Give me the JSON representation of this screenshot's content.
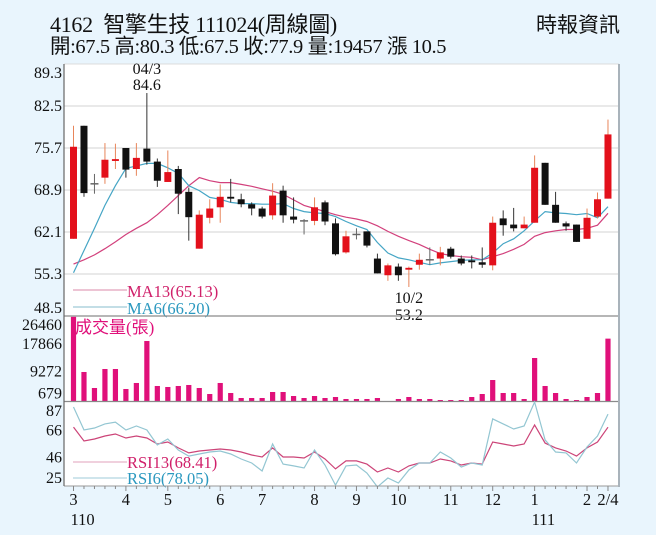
{
  "header": {
    "title": "4162  智擎生技 111024(周線圖)",
    "ohlc_line": "開:67.5 高:80.3 低:67.5 收:77.9 量:19457 漲 10.5",
    "source": "時報資訊"
  },
  "colors": {
    "background": "#e9f5fd",
    "plot_bg": "#ffffff",
    "grid": "#dcdcdc",
    "up": "#e3101b",
    "up_wick": "#e8855a",
    "down": "#111111",
    "down_wick": "#333333",
    "doji": "#666666",
    "volume": "#e0107a",
    "ma13": "#d2407c",
    "ma6": "#45a5c5",
    "rsi13": "#cc4478",
    "rsi6": "#93c6d2",
    "legend_pink_text": "#d0206a",
    "legend_blue_text": "#2a98bf",
    "legend_pink_line": "#e2a0bb",
    "legend_blue_line": "#9fcbd8",
    "axis": "#666666",
    "panel_border": "#8a8a8a",
    "right_border": "#a9b3bb"
  },
  "chart_data": [
    {
      "type": "candlestick",
      "title": "4162 智擎生技 111024(周線圖)",
      "panel": "price",
      "xlabel": "",
      "ylabel": "",
      "ylim": [
        48.5,
        89.3
      ],
      "y_ticks": [
        "89.3",
        "82.5",
        "75.7",
        "68.9",
        "62.1",
        "55.3",
        "48.5"
      ],
      "y_tick_values": [
        89.3,
        82.5,
        75.7,
        68.9,
        62.1,
        55.3,
        48.5
      ],
      "gridlines": [
        82.5,
        75.7,
        68.9,
        62.1,
        55.3
      ],
      "x_ticks": [
        {
          "label": "3",
          "index": 0,
          "year": "110"
        },
        {
          "label": "4",
          "index": 5
        },
        {
          "label": "5",
          "index": 9
        },
        {
          "label": "6",
          "index": 14
        },
        {
          "label": "7",
          "index": 18
        },
        {
          "label": "8",
          "index": 23
        },
        {
          "label": "9",
          "index": 27
        },
        {
          "label": "10",
          "index": 31
        },
        {
          "label": "11",
          "index": 36
        },
        {
          "label": "12",
          "index": 40
        },
        {
          "label": "1",
          "index": 44,
          "year": "111"
        },
        {
          "label": "2",
          "index": 49
        },
        {
          "label": "2/4",
          "index": 51
        }
      ],
      "open": [
        61.0,
        79.3,
        69.9,
        70.9,
        73.6,
        75.7,
        72.3,
        75.6,
        73.5,
        70.2,
        72.3,
        68.6,
        59.4,
        64.4,
        66.1,
        67.8,
        67.4,
        66.6,
        65.9,
        64.8,
        68.8,
        64.6,
        63.9,
        63.9,
        66.9,
        63.5,
        58.8,
        61.7,
        62.2,
        57.8,
        55.1,
        56.5,
        56.0,
        56.8,
        57.6,
        57.8,
        59.4,
        57.8,
        57.5,
        57.2,
        56.7,
        64.3,
        63.3,
        62.7,
        63.6,
        73.3,
        66.5,
        63.5,
        63.3,
        61.0,
        64.6,
        67.5
      ],
      "high": [
        79.3,
        79.3,
        71.5,
        76.5,
        76.4,
        75.7,
        76.5,
        84.6,
        74.0,
        75.3,
        72.8,
        69.3,
        65.6,
        67.4,
        69.8,
        70.7,
        68.3,
        66.9,
        66.2,
        70.0,
        69.6,
        67.7,
        64.2,
        67.7,
        67.2,
        64.3,
        62.3,
        62.7,
        62.2,
        58.6,
        57.0,
        57.0,
        56.5,
        58.6,
        59.6,
        59.7,
        59.7,
        58.3,
        58.3,
        59.6,
        64.6,
        65.6,
        66.0,
        64.6,
        74.5,
        73.3,
        68.6,
        63.8,
        63.3,
        65.9,
        68.5,
        80.3
      ],
      "low": [
        61.0,
        67.8,
        68.3,
        69.9,
        72.3,
        70.9,
        71.2,
        73.0,
        69.4,
        70.2,
        65.0,
        60.7,
        59.4,
        63.5,
        63.6,
        66.9,
        66.1,
        64.8,
        64.3,
        64.1,
        63.6,
        63.5,
        61.7,
        63.2,
        63.2,
        58.3,
        58.6,
        60.9,
        59.6,
        55.4,
        54.2,
        54.2,
        53.2,
        56.0,
        56.8,
        56.7,
        57.8,
        56.7,
        56.2,
        56.3,
        55.9,
        61.5,
        62.2,
        62.7,
        63.6,
        66.5,
        63.6,
        62.3,
        60.5,
        61.0,
        64.3,
        67.5
      ],
      "close": [
        75.9,
        68.4,
        69.9,
        73.8,
        73.9,
        72.2,
        74.1,
        73.5,
        70.4,
        71.8,
        68.3,
        64.5,
        64.9,
        65.9,
        67.8,
        67.5,
        66.6,
        65.9,
        64.6,
        68.0,
        64.8,
        64.1,
        63.9,
        66.1,
        63.8,
        58.5,
        61.4,
        61.7,
        59.9,
        55.4,
        56.7,
        55.1,
        56.3,
        57.6,
        57.6,
        58.8,
        58.1,
        57.0,
        57.2,
        56.8,
        63.6,
        63.2,
        62.7,
        63.3,
        72.5,
        66.5,
        63.6,
        63.0,
        60.5,
        64.4,
        67.4,
        77.9
      ],
      "series": [
        {
          "name": "MA13",
          "label": "MA13(65.13)",
          "color_key": "ma13",
          "values": [
            56.9,
            57.6,
            58.4,
            59.4,
            60.5,
            61.7,
            62.7,
            63.6,
            64.9,
            66.4,
            68.0,
            69.6,
            70.9,
            70.4,
            70.1,
            70.1,
            69.8,
            69.5,
            69.1,
            68.7,
            68.2,
            67.3,
            66.4,
            65.9,
            65.4,
            64.9,
            64.5,
            64.2,
            63.8,
            63.1,
            62.2,
            61.4,
            60.7,
            60.1,
            59.3,
            58.6,
            58.3,
            58.1,
            58.0,
            57.6,
            58.1,
            58.6,
            59.3,
            60.1,
            61.4,
            62.0,
            62.3,
            62.5,
            62.5,
            62.7,
            63.2,
            65.13
          ]
        },
        {
          "name": "MA6",
          "label": "MA6(66.20)",
          "color_key": "ma6",
          "values": [
            55.5,
            59.1,
            62.7,
            66.4,
            69.6,
            72.4,
            72.8,
            73.2,
            73.2,
            72.5,
            71.6,
            69.6,
            68.8,
            67.7,
            67.4,
            66.9,
            66.7,
            66.7,
            66.6,
            66.6,
            66.7,
            65.9,
            65.4,
            65.2,
            65.1,
            64.6,
            63.8,
            63.1,
            62.5,
            60.4,
            58.7,
            57.9,
            57.6,
            57.2,
            56.8,
            57.1,
            57.3,
            57.5,
            57.6,
            57.6,
            58.7,
            60.2,
            61.0,
            62.3,
            63.9,
            65.4,
            65.2,
            65.1,
            64.9,
            65.1,
            64.4,
            66.2
          ]
        }
      ],
      "annotations": [
        {
          "lines": [
            "04/3",
            "84.6"
          ],
          "index": 7,
          "value": 84.6,
          "position": "above"
        },
        {
          "lines": [
            "10/2",
            "53.2"
          ],
          "index": 32,
          "value": 53.2,
          "position": "below"
        }
      ]
    },
    {
      "type": "bar",
      "panel": "volume",
      "title": "成交量(張)",
      "ylim": [
        0,
        26460
      ],
      "y_ticks": [
        "26460",
        "17866",
        "9272",
        "679"
      ],
      "y_tick_values": [
        26460,
        17866,
        9272,
        679
      ],
      "values": [
        26200,
        9130,
        4180,
        10060,
        10060,
        3870,
        5730,
        18720,
        4800,
        4490,
        4800,
        5110,
        4180,
        2320,
        5730,
        2630,
        1080,
        1080,
        1080,
        2940,
        2940,
        1700,
        1080,
        1700,
        1080,
        1390,
        770,
        770,
        770,
        1080,
        150,
        770,
        1390,
        770,
        770,
        460,
        460,
        460,
        1390,
        2320,
        6650,
        2630,
        2630,
        770,
        13460,
        4800,
        2630,
        770,
        460,
        1390,
        2630,
        19457
      ]
    },
    {
      "type": "line",
      "panel": "rsi",
      "ylim": [
        25,
        87
      ],
      "y_ticks": [
        "87",
        "66",
        "46",
        "25"
      ],
      "y_tick_values": [
        87,
        66,
        46,
        25
      ],
      "series": [
        {
          "name": "RSI13",
          "label": "RSI13(68.41)",
          "color_key": "rsi13",
          "values": [
            68.5,
            58.2,
            59.7,
            61.9,
            63.4,
            60.4,
            61.9,
            60.4,
            56.0,
            57.5,
            53.1,
            49.4,
            50.8,
            51.6,
            52.3,
            51.6,
            50.1,
            47.9,
            46.4,
            53.1,
            46.4,
            46.4,
            45.7,
            50.1,
            44.9,
            37.6,
            43.5,
            43.5,
            41.2,
            35.3,
            38.3,
            35.3,
            39.8,
            42.0,
            42.0,
            44.9,
            43.5,
            40.5,
            42.0,
            41.2,
            57.5,
            56.0,
            54.5,
            56.0,
            70.0,
            56.7,
            53.1,
            50.8,
            47.1,
            53.1,
            57.5,
            68.41
          ]
        },
        {
          "name": "RSI6",
          "label": "RSI6(78.05)",
          "color_key": "rsi6",
          "values": [
            83.3,
            66.3,
            67.8,
            70.8,
            72.2,
            66.3,
            69.3,
            66.3,
            55.3,
            59.7,
            51.6,
            47.1,
            48.6,
            50.1,
            50.8,
            48.6,
            44.9,
            42.0,
            36.1,
            56.0,
            41.2,
            39.8,
            38.3,
            51.6,
            40.5,
            25.7,
            39.8,
            40.5,
            34.6,
            24.3,
            30.9,
            27.2,
            36.8,
            42.0,
            42.0,
            50.1,
            45.7,
            39.0,
            42.0,
            40.5,
            74.5,
            70.8,
            67.1,
            69.3,
            87.0,
            59.0,
            50.1,
            49.4,
            42.0,
            53.8,
            61.9,
            78.05
          ]
        }
      ]
    }
  ]
}
